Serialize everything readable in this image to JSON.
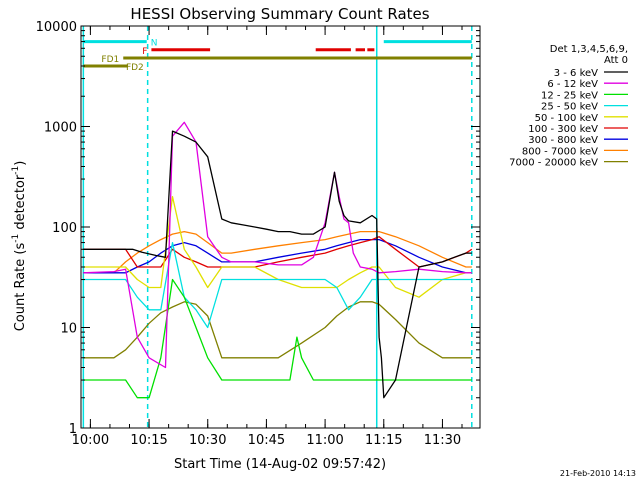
{
  "chart_data": {
    "type": "line",
    "title": "HESSI Observing Summary Count Rates",
    "xlabel": "Start Time (14-Aug-02 09:57:42)",
    "ylabel_main": "Count Rate (s",
    "ylabel_sup1": "-1",
    "ylabel_mid": " detector",
    "ylabel_sup2": "-1",
    "ylabel_end": ")",
    "date_stamp": "21-Feb-2010 14:13",
    "yscale": "log",
    "ylim": [
      1,
      10000
    ],
    "xlim": [
      9.96,
      11.66
    ],
    "x_unit": "hours (UT)",
    "x_ticks": [
      {
        "x": 10.0,
        "label": "10:00"
      },
      {
        "x": 10.25,
        "label": "10:15"
      },
      {
        "x": 10.5,
        "label": "10:30"
      },
      {
        "x": 10.75,
        "label": "10:45"
      },
      {
        "x": 11.0,
        "label": "11:00"
      },
      {
        "x": 11.25,
        "label": "11:15"
      },
      {
        "x": 11.5,
        "label": "11:30"
      }
    ],
    "y_ticks": [
      {
        "y": 1,
        "label": "1"
      },
      {
        "y": 10,
        "label": "10"
      },
      {
        "y": 100,
        "label": "100"
      },
      {
        "y": 1000,
        "label": "1000"
      },
      {
        "y": 10000,
        "label": "10000"
      }
    ],
    "legend_header": [
      "Det 1,3,4,5,6,9,",
      "Att 0"
    ],
    "legend_placement": "right",
    "series": [
      {
        "name": "3 - 6 keV",
        "color": "#000000",
        "x": [
          9.97,
          10.18,
          10.2,
          10.22,
          10.25,
          10.28,
          10.32,
          10.35,
          10.4,
          10.45,
          10.5,
          10.56,
          10.6,
          10.65,
          10.7,
          10.75,
          10.8,
          10.85,
          10.9,
          10.95,
          11.0,
          11.04,
          11.06,
          11.08,
          11.1,
          11.15,
          11.2,
          11.22,
          11.23,
          11.24,
          11.25,
          11.3,
          11.4,
          11.5,
          11.55,
          11.6,
          11.625
        ],
        "y": [
          60,
          60,
          58,
          56,
          54,
          52,
          50,
          900,
          800,
          700,
          500,
          120,
          110,
          105,
          100,
          95,
          90,
          90,
          85,
          85,
          100,
          350,
          180,
          130,
          115,
          110,
          130,
          120,
          8,
          5,
          2,
          3,
          40,
          45,
          50,
          55,
          55
        ]
      },
      {
        "name": "6 - 12 keV",
        "color": "#e000e0",
        "x": [
          9.97,
          10.1,
          10.15,
          10.18,
          10.2,
          10.25,
          10.32,
          10.35,
          10.4,
          10.45,
          10.5,
          10.56,
          10.6,
          10.7,
          10.8,
          10.9,
          10.95,
          11.0,
          11.04,
          11.06,
          11.08,
          11.1,
          11.12,
          11.15,
          11.2,
          11.23,
          11.3,
          11.4,
          11.5,
          11.6,
          11.625
        ],
        "y": [
          35,
          36,
          38,
          15,
          8,
          5,
          4,
          800,
          1100,
          700,
          80,
          50,
          45,
          45,
          42,
          42,
          50,
          110,
          350,
          200,
          120,
          110,
          55,
          40,
          38,
          35,
          36,
          38,
          36,
          35,
          35
        ]
      },
      {
        "name": "12 - 25 keV",
        "color": "#00e000",
        "x": [
          9.97,
          10.1,
          10.15,
          10.2,
          10.25,
          10.3,
          10.35,
          10.4,
          10.45,
          10.5,
          10.56,
          10.6,
          10.7,
          10.8,
          10.85,
          10.88,
          10.9,
          10.95,
          11.0,
          11.1,
          11.15,
          11.2,
          11.25,
          11.3,
          11.4,
          11.5,
          11.6,
          11.625
        ],
        "y": [
          3,
          3,
          3,
          2,
          2,
          5,
          30,
          20,
          10,
          5,
          3,
          3,
          3,
          3,
          3,
          8,
          5,
          3,
          3,
          3,
          3,
          3,
          3,
          3,
          3,
          3,
          3,
          3
        ]
      },
      {
        "name": "25 - 50 keV",
        "color": "#00e0e0",
        "x": [
          9.97,
          10.1,
          10.15,
          10.2,
          10.25,
          10.3,
          10.35,
          10.4,
          10.45,
          10.5,
          10.56,
          10.6,
          10.7,
          10.8,
          10.9,
          11.0,
          11.05,
          11.1,
          11.15,
          11.2,
          11.23,
          11.3,
          11.4,
          11.5,
          11.6,
          11.625
        ],
        "y": [
          30,
          30,
          30,
          20,
          15,
          15,
          70,
          20,
          15,
          10,
          30,
          30,
          30,
          30,
          30,
          30,
          25,
          15,
          20,
          30,
          30,
          30,
          30,
          30,
          30,
          30
        ]
      },
      {
        "name": "50 - 100 keV",
        "color": "#e0e000",
        "x": [
          9.97,
          10.1,
          10.15,
          10.2,
          10.25,
          10.3,
          10.35,
          10.4,
          10.45,
          10.5,
          10.56,
          10.6,
          10.7,
          10.8,
          10.9,
          11.0,
          11.05,
          11.1,
          11.15,
          11.2,
          11.23,
          11.3,
          11.4,
          11.5,
          11.6,
          11.625
        ],
        "y": [
          40,
          40,
          40,
          30,
          25,
          25,
          200,
          60,
          40,
          25,
          40,
          40,
          40,
          30,
          25,
          25,
          25,
          30,
          35,
          40,
          40,
          25,
          20,
          30,
          35,
          35
        ]
      },
      {
        "name": "100 - 300 keV",
        "color": "#e00000",
        "x": [
          9.97,
          10.1,
          10.15,
          10.2,
          10.25,
          10.3,
          10.35,
          10.4,
          10.45,
          10.5,
          10.56,
          10.6,
          10.7,
          10.8,
          10.9,
          11.0,
          11.05,
          11.1,
          11.15,
          11.2,
          11.23,
          11.3,
          11.4,
          11.5,
          11.6,
          11.625
        ],
        "y": [
          60,
          60,
          60,
          40,
          40,
          40,
          60,
          50,
          45,
          40,
          40,
          40,
          40,
          45,
          50,
          55,
          60,
          65,
          70,
          75,
          80,
          60,
          40,
          45,
          55,
          60
        ]
      },
      {
        "name": "300 - 800 keV",
        "color": "#0000e0",
        "x": [
          9.97,
          10.1,
          10.15,
          10.2,
          10.25,
          10.3,
          10.35,
          10.4,
          10.45,
          10.5,
          10.56,
          10.6,
          10.7,
          10.8,
          10.9,
          11.0,
          11.05,
          11.1,
          11.15,
          11.2,
          11.23,
          11.3,
          11.4,
          11.5,
          11.6,
          11.625
        ],
        "y": [
          35,
          35,
          35,
          40,
          45,
          55,
          65,
          70,
          65,
          55,
          45,
          45,
          45,
          50,
          55,
          60,
          65,
          70,
          75,
          75,
          75,
          65,
          50,
          40,
          35,
          35
        ]
      },
      {
        "name": "800 - 7000 keV",
        "color": "#ff8000",
        "x": [
          9.97,
          10.1,
          10.15,
          10.2,
          10.25,
          10.3,
          10.35,
          10.4,
          10.45,
          10.5,
          10.56,
          10.6,
          10.7,
          10.8,
          10.9,
          11.0,
          11.05,
          11.1,
          11.15,
          11.2,
          11.23,
          11.3,
          11.4,
          11.5,
          11.6,
          11.625
        ],
        "y": [
          35,
          35,
          45,
          55,
          65,
          75,
          85,
          90,
          85,
          70,
          55,
          55,
          60,
          65,
          70,
          75,
          80,
          85,
          90,
          90,
          90,
          80,
          65,
          50,
          40,
          40
        ]
      },
      {
        "name": "7000 - 20000 keV",
        "color": "#808000",
        "x": [
          9.97,
          10.1,
          10.15,
          10.2,
          10.25,
          10.3,
          10.35,
          10.4,
          10.45,
          10.5,
          10.56,
          10.6,
          10.7,
          10.8,
          10.9,
          11.0,
          11.05,
          11.1,
          11.15,
          11.2,
          11.23,
          11.3,
          11.4,
          11.5,
          11.6,
          11.625
        ],
        "y": [
          5,
          5,
          6,
          8,
          11,
          14,
          16,
          18,
          17,
          13,
          5,
          5,
          5,
          5,
          7,
          10,
          13,
          16,
          18,
          18,
          17,
          12,
          7,
          5,
          5,
          5
        ]
      }
    ],
    "flag_bars": [
      {
        "label": "N",
        "color": "#00e0e0",
        "y": 7000,
        "segments": [
          [
            9.97,
            10.24
          ],
          [
            11.25,
            11.625
          ]
        ]
      },
      {
        "label": "F",
        "color": "#e00000",
        "y": 5800,
        "segments": [
          [
            10.26,
            10.51
          ],
          [
            10.96,
            11.11
          ],
          [
            11.13,
            11.17
          ],
          [
            11.18,
            11.21
          ]
        ]
      },
      {
        "label": "FD1",
        "color": "#808000",
        "y": 4800,
        "segments": [
          [
            10.14,
            11.625
          ]
        ]
      },
      {
        "label": "FD2",
        "color": "#808000",
        "y": 4000,
        "segments": [
          [
            9.97,
            10.16
          ]
        ]
      }
    ],
    "vertical_markers": [
      {
        "x": 9.97,
        "style": "solid",
        "color": "#00e0e0"
      },
      {
        "x": 10.244,
        "style": "dashed",
        "color": "#00e0e0"
      },
      {
        "x": 11.22,
        "style": "solid",
        "color": "#00e0e0"
      },
      {
        "x": 11.625,
        "style": "dashed",
        "color": "#00e0e0"
      }
    ]
  }
}
